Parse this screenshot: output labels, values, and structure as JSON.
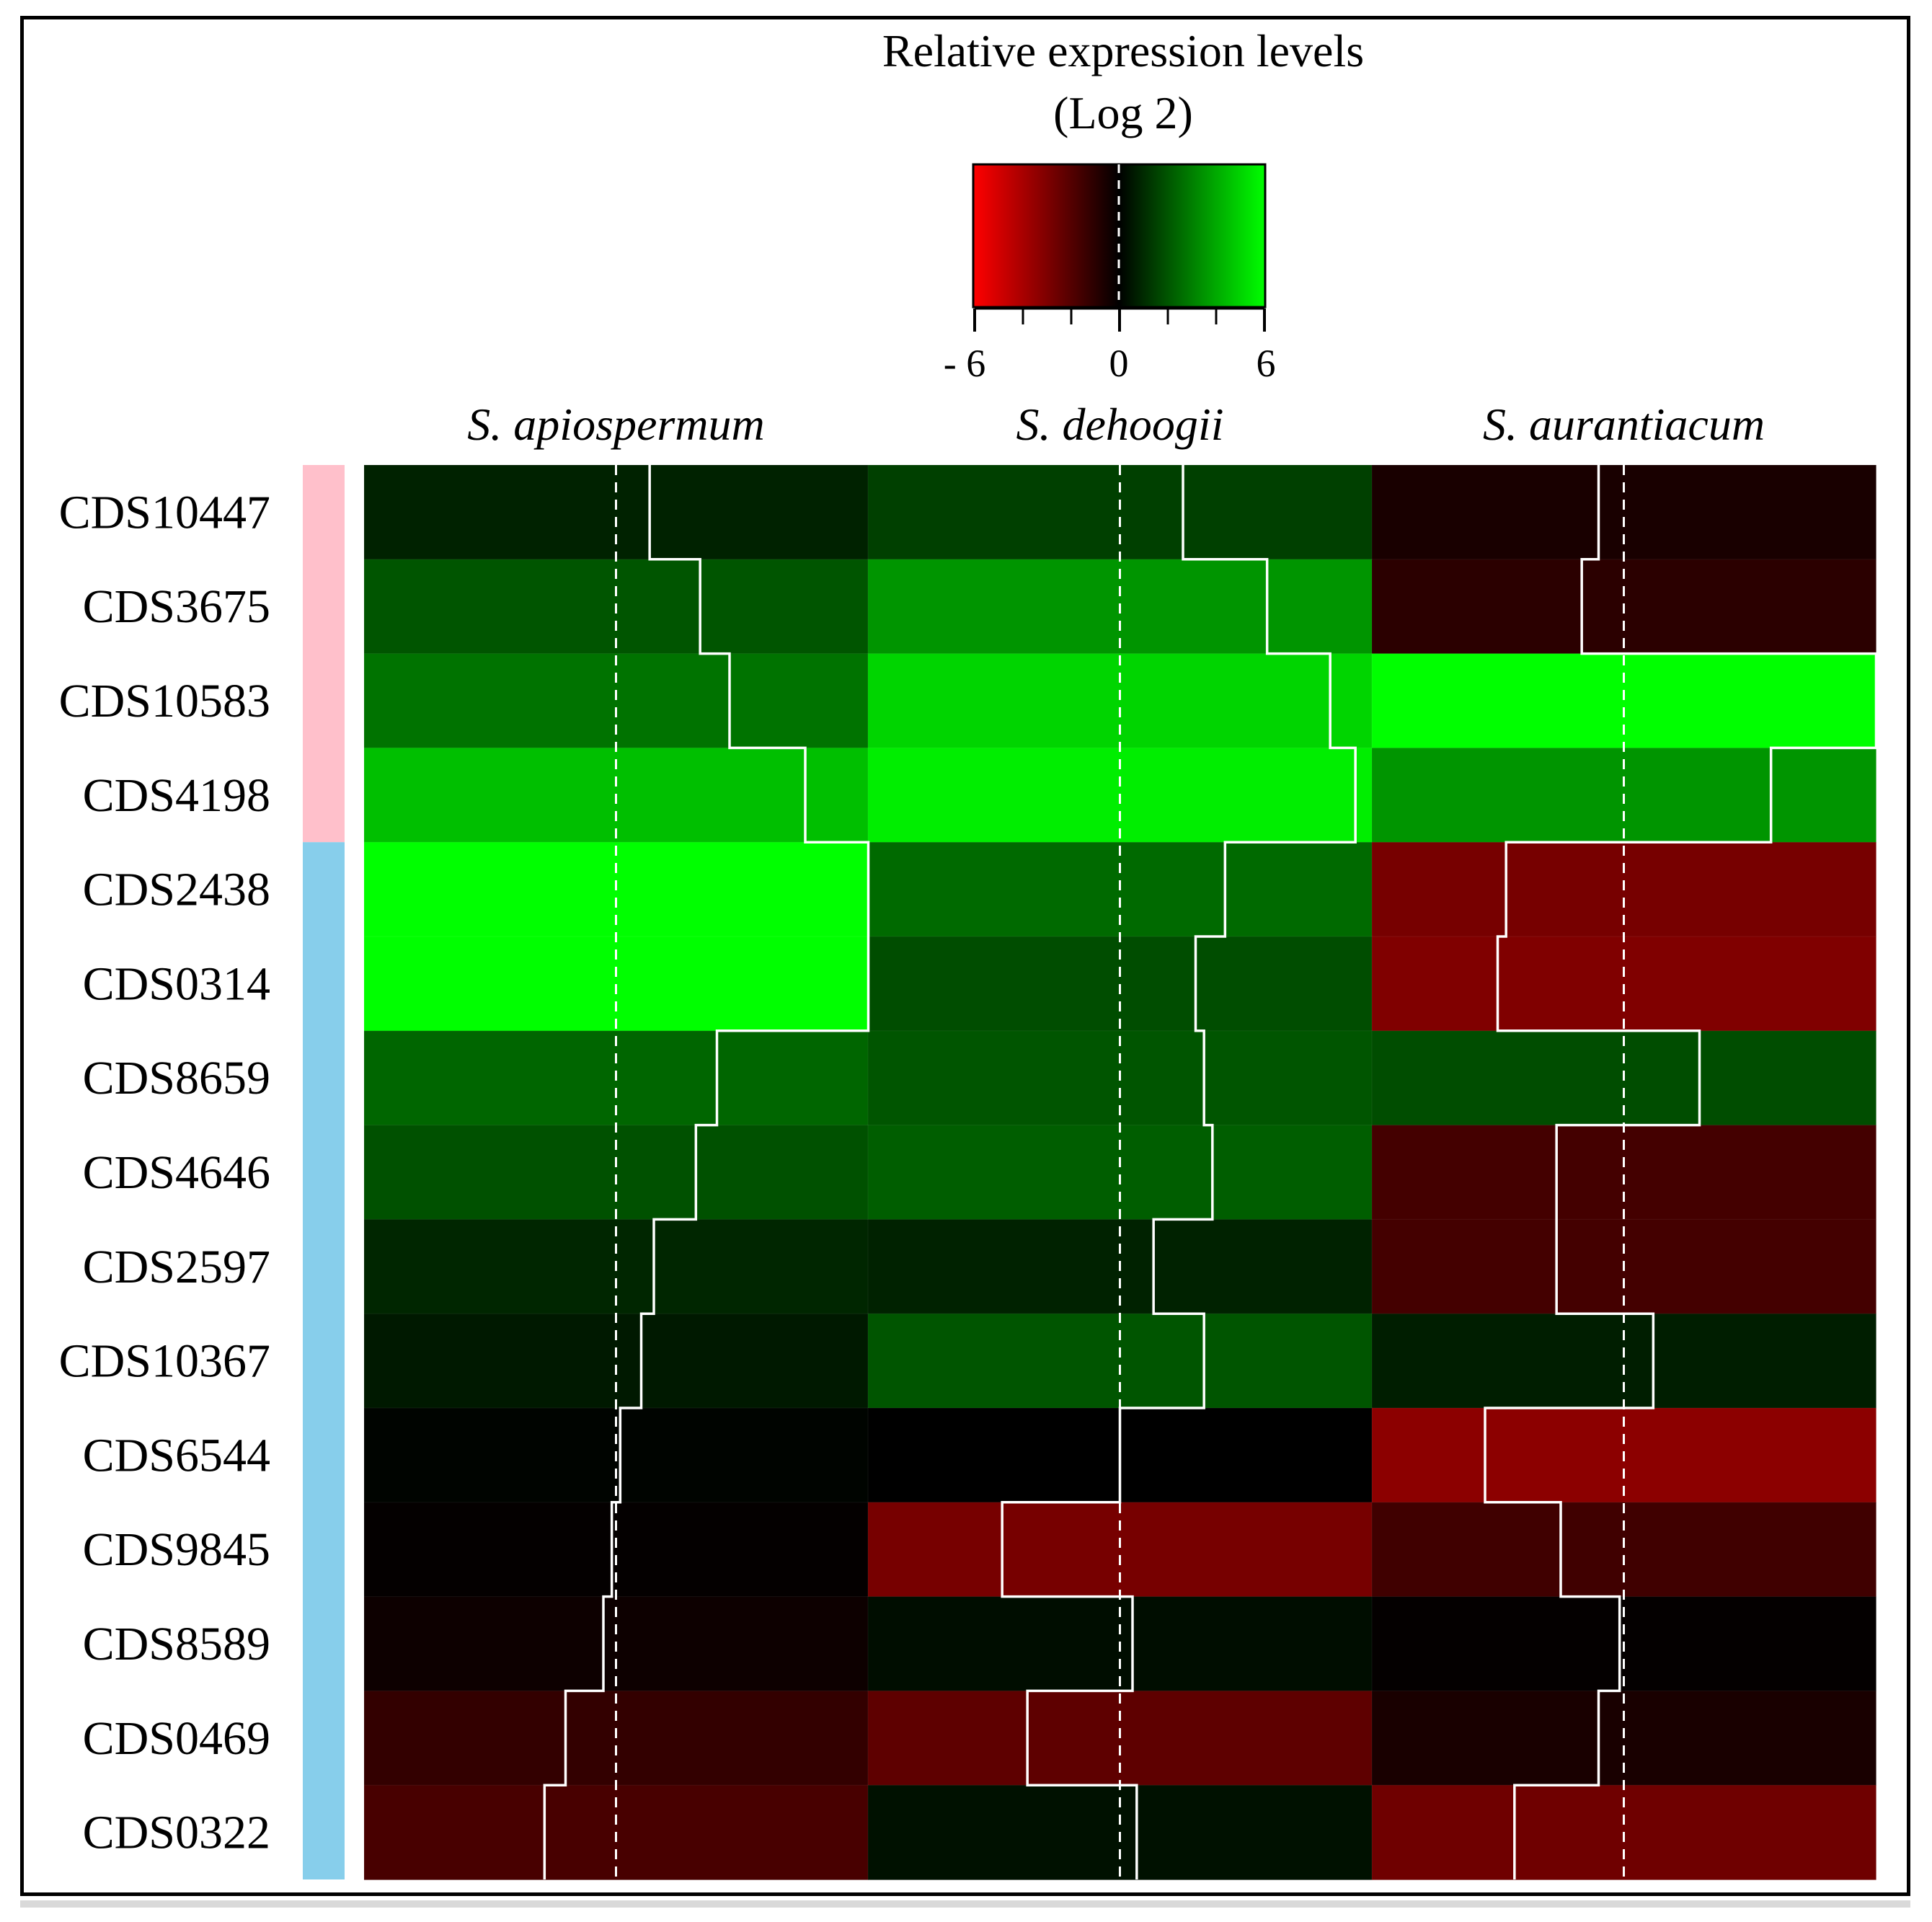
{
  "chart_data": {
    "type": "heatmap",
    "legend": {
      "title_line1": "Relative expression levels",
      "title_line2": "(Log 2)",
      "min_label": "- 6",
      "mid_label": "0",
      "max_label": "6",
      "range": [
        -6,
        6
      ],
      "colors": {
        "low": "#ff0000",
        "mid": "#000000",
        "high": "#00ff00"
      }
    },
    "columns": [
      "S. apiospermum",
      "S. dehoogii",
      "S. aurantiacum"
    ],
    "rows": [
      "CDS10447",
      "CDS3675",
      "CDS10583",
      "CDS4198",
      "CDS2438",
      "CDS0314",
      "CDS8659",
      "CDS4646",
      "CDS2597",
      "CDS10367",
      "CDS6544",
      "CDS9845",
      "CDS8589",
      "CDS0469",
      "CDS0322"
    ],
    "row_groups": [
      {
        "rows": 4,
        "color": "#ffc0cb"
      },
      {
        "rows": 11,
        "color": "#87ceeb"
      }
    ],
    "values": [
      [
        0.8,
        1.5,
        -0.6
      ],
      [
        2.0,
        3.5,
        -1.0
      ],
      [
        2.7,
        5.0,
        6.0
      ],
      [
        4.5,
        5.6,
        3.5
      ],
      [
        6.0,
        2.5,
        -2.8
      ],
      [
        6.0,
        1.8,
        -3.0
      ],
      [
        2.4,
        2.0,
        1.8
      ],
      [
        1.9,
        2.2,
        -1.6
      ],
      [
        0.9,
        0.8,
        -1.6
      ],
      [
        0.6,
        2.0,
        0.7
      ],
      [
        0.1,
        0.0,
        -3.3
      ],
      [
        -0.1,
        -2.8,
        -1.5
      ],
      [
        -0.3,
        0.3,
        -0.1
      ],
      [
        -1.2,
        -2.2,
        -0.6
      ],
      [
        -1.7,
        0.4,
        -2.6
      ]
    ]
  }
}
